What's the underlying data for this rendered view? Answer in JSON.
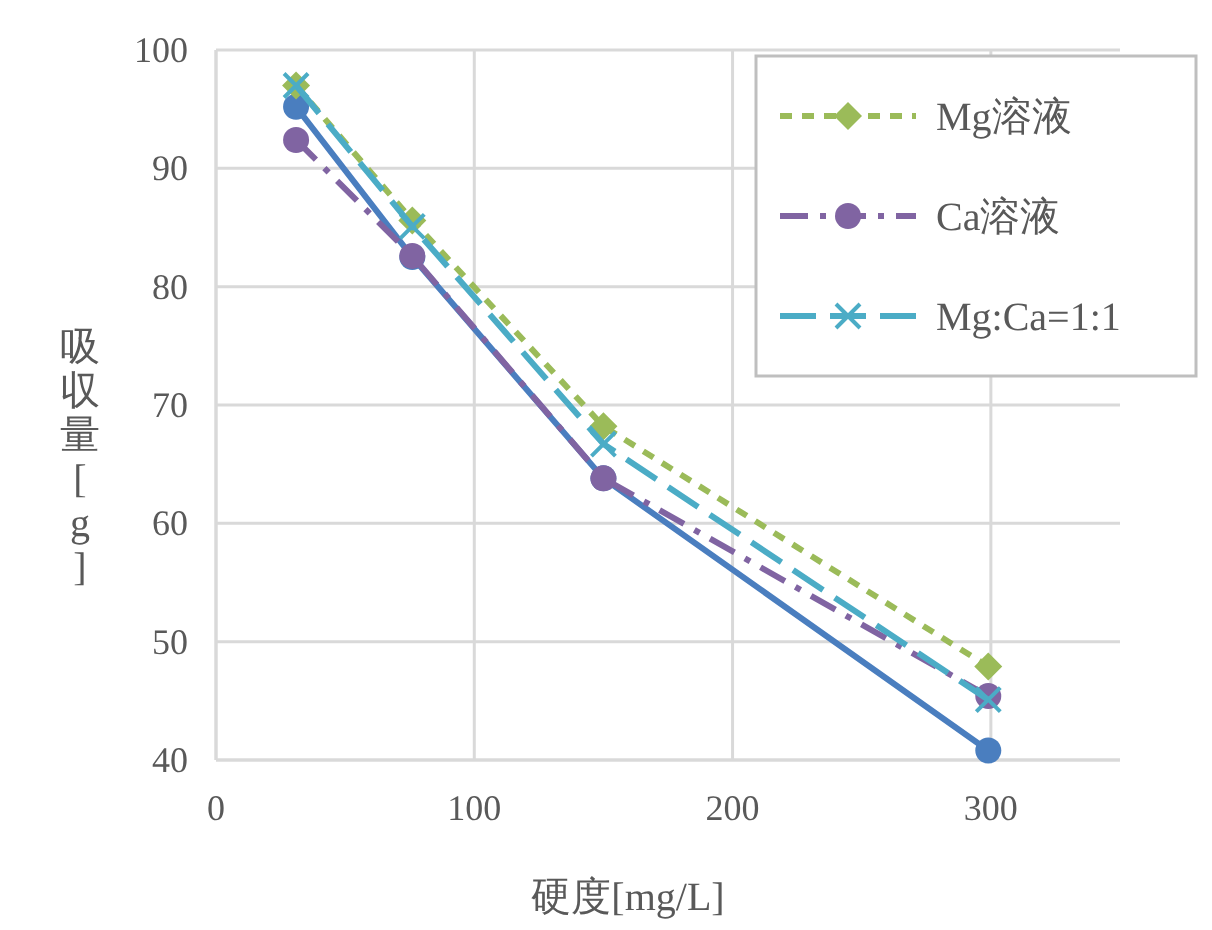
{
  "chart_data": {
    "type": "line",
    "xlabel": "硬度[mg/L]",
    "ylabel": "吸収量[g]",
    "xlim": [
      0,
      350
    ],
    "xticks": [
      0,
      100,
      200,
      300
    ],
    "ylim": [
      40,
      100
    ],
    "yticks": [
      40,
      50,
      60,
      70,
      80,
      90,
      100
    ],
    "grid": true,
    "legend": "top right",
    "x": [
      31,
      76,
      150,
      299
    ],
    "series": [
      {
        "color": "#4a7ebf",
        "values": [
          95.2,
          82.5,
          63.8,
          40.8
        ],
        "marker": "circle",
        "line_style": "solid"
      },
      {
        "name": "Mg溶液",
        "color": "#9bbb59",
        "values": [
          97,
          85.6,
          68.2,
          47.9
        ],
        "marker": "diamond",
        "line_style": "dashed"
      },
      {
        "name": "Ca溶液",
        "color": "#8064a2",
        "values": [
          92.4,
          82.6,
          63.8,
          45.4
        ],
        "marker": "circle",
        "line_style": "dashdot"
      },
      {
        "name": "Mg:Ca=1:1",
        "color": "#4bacc6",
        "values": [
          97,
          85.1,
          66.7,
          45.1
        ],
        "marker": "cross",
        "line_style": "longdash"
      }
    ]
  }
}
